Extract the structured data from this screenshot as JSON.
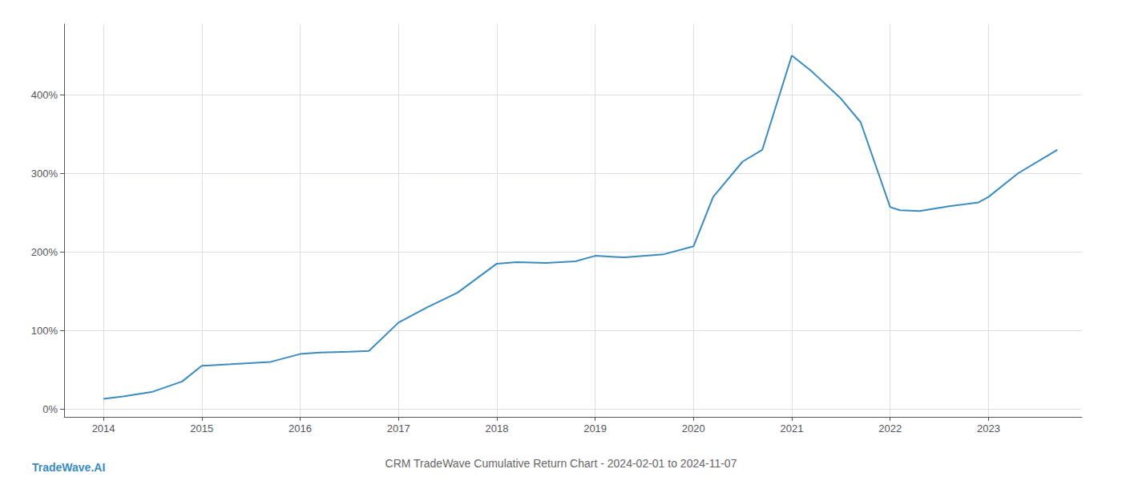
{
  "chart_data": {
    "type": "line",
    "title": "CRM TradeWave Cumulative Return Chart - 2024-02-01 to 2024-11-07",
    "annotations": [
      "TradeWave.AI"
    ],
    "color": "#3a8bbf",
    "x": [
      2014.0,
      2014.2,
      2014.5,
      2014.8,
      2015.0,
      2015.3,
      2015.7,
      2016.0,
      2016.2,
      2016.5,
      2016.7,
      2017.0,
      2017.3,
      2017.6,
      2018.0,
      2018.2,
      2018.5,
      2018.8,
      2019.0,
      2019.3,
      2019.7,
      2020.0,
      2020.2,
      2020.5,
      2020.7,
      2021.0,
      2021.2,
      2021.5,
      2021.7,
      2022.0,
      2022.1,
      2022.3,
      2022.6,
      2022.9,
      2023.0,
      2023.3,
      2023.7
    ],
    "values": [
      13,
      16,
      22,
      35,
      55,
      57,
      60,
      70,
      72,
      73,
      74,
      110,
      130,
      148,
      185,
      187,
      186,
      188,
      195,
      193,
      197,
      207,
      270,
      315,
      330,
      450,
      430,
      395,
      365,
      257,
      253,
      252,
      258,
      263,
      270,
      300,
      330
    ],
    "xlim": [
      2013.6,
      2023.95
    ],
    "xticks": [
      2014,
      2015,
      2016,
      2017,
      2018,
      2019,
      2020,
      2021,
      2022,
      2023
    ],
    "ylim": [
      -10,
      490
    ],
    "yticks": [
      {
        "value": 0,
        "label": "0%"
      },
      {
        "value": 100,
        "label": "100%"
      },
      {
        "value": 200,
        "label": "200%"
      },
      {
        "value": 300,
        "label": "300%"
      },
      {
        "value": 400,
        "label": "400%"
      }
    ],
    "grid": true
  }
}
